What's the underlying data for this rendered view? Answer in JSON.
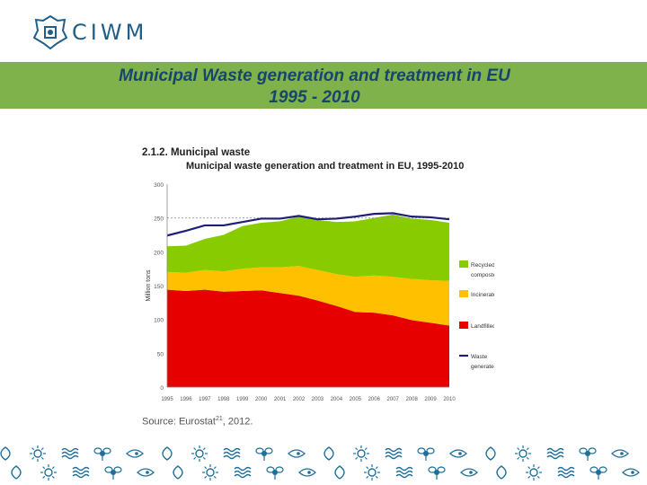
{
  "header": {
    "logo_text": "CIWM",
    "title_line1": "Municipal Waste generation and treatment in EU",
    "title_line2": "1995 - 2010"
  },
  "chart_section": {
    "heading": "2.1.2. Municipal waste",
    "chart_title": "Municipal waste generation and treatment in EU, 1995-2010"
  },
  "source": {
    "prefix": "Source: Eurostat",
    "sup": "21",
    "suffix": ", 2012."
  },
  "chart_data": {
    "type": "area",
    "title": "Municipal waste generation and treatment in EU, 1995-2010",
    "ylabel": "Million tons",
    "xlabel": "",
    "ylim": [
      0,
      300
    ],
    "yticks": [
      0,
      50,
      100,
      150,
      200,
      250,
      300
    ],
    "grid": "dashed line at 250",
    "legend_position": "right",
    "categories": [
      "1995",
      "1996",
      "1997",
      "1998",
      "1999",
      "2000",
      "2001",
      "2002",
      "2003",
      "2004",
      "2005",
      "2006",
      "2007",
      "2008",
      "2009",
      "2010"
    ],
    "series": [
      {
        "name": "Landfilled",
        "values": [
          144,
          142,
          144,
          141,
          142,
          143,
          139,
          135,
          128,
          120,
          111,
          110,
          106,
          99,
          95,
          91
        ],
        "color": "#e60000"
      },
      {
        "name": "Incinerated",
        "values": [
          26,
          27,
          29,
          30,
          33,
          34,
          38,
          44,
          45,
          47,
          52,
          55,
          57,
          61,
          63,
          66
        ],
        "color": "#ffc000"
      },
      {
        "name": "Recycled or composted",
        "values": [
          38,
          40,
          46,
          54,
          63,
          66,
          68,
          73,
          74,
          77,
          82,
          85,
          92,
          89,
          89,
          86
        ],
        "color": "#88cc00"
      },
      {
        "name": "Waste generated",
        "values": [
          224,
          231,
          239,
          239,
          244,
          249,
          249,
          253,
          248,
          249,
          252,
          256,
          257,
          252,
          251,
          248
        ],
        "color": "#1f1f7a"
      }
    ]
  },
  "colors": {
    "title_band": "#7fb24a",
    "title_text": "#17456b",
    "logo": "#1f5f8b",
    "footer_pattern": "#1e6f9a"
  }
}
